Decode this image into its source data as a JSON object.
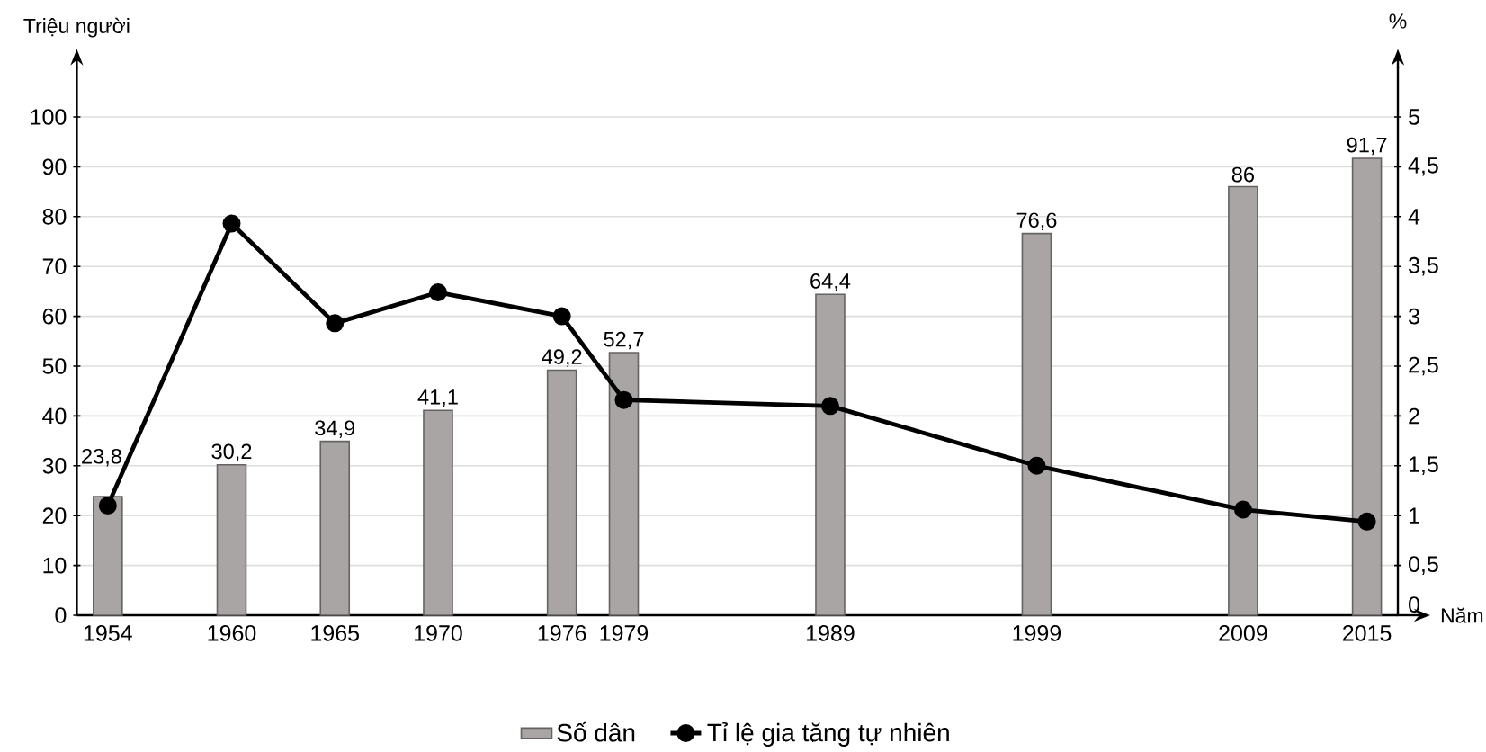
{
  "chart_data": {
    "type": "bar",
    "xlabel": "Năm",
    "ylabel": "Triệu người",
    "y2label": "%",
    "x": [
      1954,
      1960,
      1965,
      1970,
      1976,
      1979,
      1989,
      1999,
      2009,
      2015
    ],
    "xlim": [
      1952.5,
      2016.5
    ],
    "xticks": [
      1954,
      1960,
      1965,
      1970,
      1976,
      1979,
      1989,
      1999,
      2009,
      2015
    ],
    "ylim": [
      0,
      110
    ],
    "yticks": [
      0,
      10,
      20,
      30,
      40,
      50,
      60,
      70,
      80,
      90,
      100
    ],
    "y2lim": [
      0,
      5.5
    ],
    "y2ticks": [
      0,
      {
        "value": 0.5,
        "label": "0,5"
      },
      1,
      {
        "value": 1.5,
        "label": "1,5"
      },
      2,
      {
        "value": 2.5,
        "label": "2,5"
      },
      3,
      {
        "value": 3.5,
        "label": "3,5"
      },
      4,
      {
        "value": 4.5,
        "label": "4,5"
      },
      5
    ],
    "grid": "y",
    "legend": "bottom",
    "series": [
      {
        "name": "Số dân",
        "color": "#a9a5a4",
        "values": [
          23.8,
          30.2,
          34.9,
          41.1,
          49.2,
          52.7,
          64.4,
          76.6,
          86,
          91.7
        ],
        "value_labels": [
          "23,8",
          "30,2",
          "34,9",
          "41,1",
          "49,2",
          "52,7",
          "64,4",
          "76,6",
          "86",
          "91,7"
        ]
      },
      {
        "name": "Tỉ lệ gia tăng tự nhiên",
        "type": "line",
        "axis": "y2",
        "color": "#000000",
        "marker": "circle",
        "values": [
          1.1,
          3.93,
          2.93,
          3.24,
          3.0,
          2.16,
          2.1,
          1.5,
          1.06,
          0.94
        ]
      }
    ]
  }
}
